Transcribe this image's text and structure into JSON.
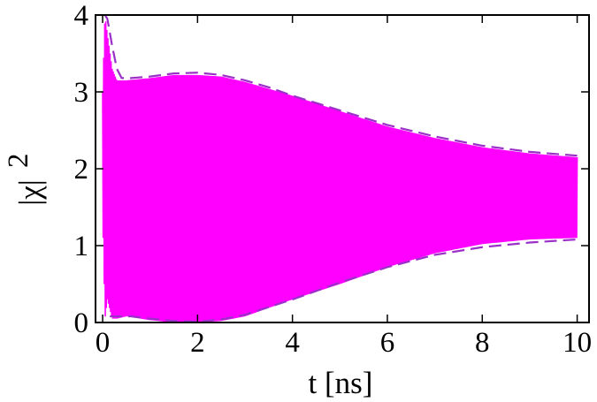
{
  "chart_data": {
    "type": "line",
    "xlabel": "t [ns]",
    "ylabel": "|χ|",
    "ylabel_superscript": "2",
    "xlim": [
      -0.15,
      10.25
    ],
    "ylim": [
      0,
      4
    ],
    "xticks": [
      0,
      2,
      4,
      6,
      8,
      10
    ],
    "yticks": [
      0,
      1,
      2,
      3,
      4
    ],
    "grid": false,
    "fill_color": "#ff00ff",
    "envelope_color": "#9b30c8",
    "series": [
      {
        "style": "solid-oscillation-band",
        "x": [
          0.0,
          0.05,
          0.1,
          0.2,
          0.3,
          0.5,
          1.0,
          1.5,
          2.0,
          2.5,
          3.0,
          4.0,
          5.0,
          6.0,
          7.0,
          8.0,
          9.0,
          10.0
        ],
        "upper": [
          3.0,
          4.0,
          3.75,
          3.3,
          3.15,
          3.15,
          3.18,
          3.22,
          3.22,
          3.2,
          3.13,
          2.95,
          2.75,
          2.55,
          2.4,
          2.28,
          2.2,
          2.15
        ],
        "lower": [
          1.4,
          0.05,
          0.3,
          0.05,
          0.05,
          0.08,
          0.03,
          0.0,
          0.0,
          0.02,
          0.08,
          0.3,
          0.5,
          0.72,
          0.9,
          1.02,
          1.08,
          1.1
        ]
      },
      {
        "style": "dashed-upper-envelope",
        "x": [
          0.05,
          0.1,
          0.2,
          0.3,
          0.4,
          0.6,
          1.0,
          1.5,
          2.0,
          2.5,
          3.0,
          3.5,
          4.0,
          5.0,
          6.0,
          7.0,
          8.0,
          9.0,
          10.0
        ],
        "y": [
          4.0,
          3.95,
          3.6,
          3.3,
          3.18,
          3.18,
          3.2,
          3.24,
          3.25,
          3.22,
          3.15,
          3.06,
          2.95,
          2.76,
          2.57,
          2.42,
          2.3,
          2.22,
          2.17
        ]
      },
      {
        "style": "dashed-lower-envelope",
        "x": [
          0.15,
          0.3,
          0.6,
          1.0,
          1.5,
          2.0,
          2.5,
          3.0,
          3.5,
          4.0,
          5.0,
          6.0,
          7.0,
          8.0,
          9.0,
          10.0
        ],
        "y": [
          0.08,
          0.08,
          0.08,
          0.05,
          0.02,
          0.01,
          0.04,
          0.1,
          0.2,
          0.3,
          0.52,
          0.72,
          0.88,
          0.98,
          1.04,
          1.08
        ]
      }
    ]
  }
}
